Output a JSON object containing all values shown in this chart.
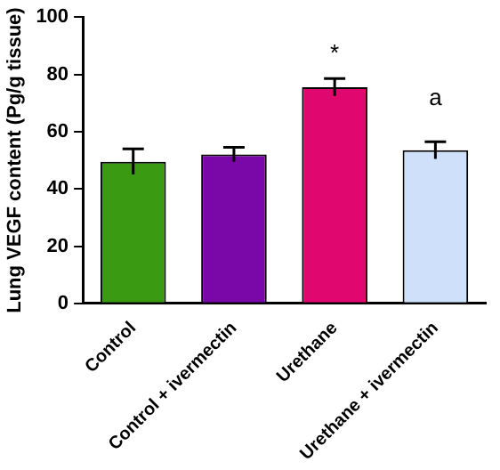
{
  "chart_data": {
    "type": "bar",
    "ylabel": "Lung VEGF content (Pg/g tissue)",
    "categories": [
      "Control",
      "Control + ivermectin",
      "Urethane",
      "Urethane + ivermectin"
    ],
    "values": [
      49.5,
      52,
      75.5,
      53.5
    ],
    "colors": [
      "#3a9a12",
      "#7a07a8",
      "#e0086e",
      "#cfe0fb"
    ],
    "errors": [
      4.5,
      2.5,
      3,
      3
    ],
    "ylim": [
      0,
      100
    ],
    "yticks": [
      0,
      20,
      40,
      60,
      80,
      100
    ],
    "grid": false,
    "legend": false,
    "annotations": [
      "*",
      "a"
    ]
  }
}
